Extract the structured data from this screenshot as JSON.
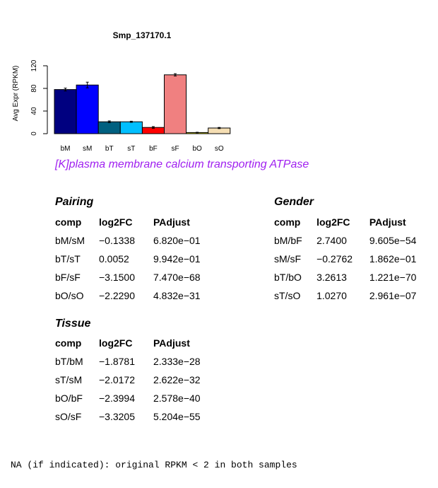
{
  "chart_data": {
    "type": "bar",
    "title": "Smp_137170.1",
    "ylabel": "Avg Expr (RPKM)",
    "xlabel": "",
    "ylim": [
      0,
      140
    ],
    "yticks": [
      0,
      40,
      80,
      120
    ],
    "categories": [
      "bM",
      "sM",
      "bT",
      "sT",
      "bF",
      "sF",
      "bO",
      "sO"
    ],
    "values": [
      78,
      86,
      21,
      21,
      11,
      104,
      2,
      10
    ],
    "errors": [
      2.5,
      5,
      1.5,
      1,
      1.5,
      2,
      0.5,
      1
    ],
    "colors": [
      "#000080",
      "#0000ff",
      "#006080",
      "#00bfff",
      "#ff0000",
      "#f08080",
      "#cccc00",
      "#f5deb3"
    ]
  },
  "subtitle": "[K]plasma membrane calcium transporting ATPase",
  "tables": {
    "pairing": {
      "title": "Pairing",
      "headers": [
        "comp",
        "log2FC",
        "PAdjust"
      ],
      "rows": [
        [
          "bM/sM",
          "−0.1338",
          "6.820e−01"
        ],
        [
          "bT/sT",
          "0.0052",
          "9.942e−01"
        ],
        [
          "bF/sF",
          "−3.1500",
          "7.470e−68"
        ],
        [
          "bO/sO",
          "−2.2290",
          "4.832e−31"
        ]
      ]
    },
    "gender": {
      "title": "Gender",
      "headers": [
        "comp",
        "log2FC",
        "PAdjust"
      ],
      "rows": [
        [
          "bM/bF",
          "2.7400",
          "9.605e−54"
        ],
        [
          "sM/sF",
          "−0.2762",
          "1.862e−01"
        ],
        [
          "bT/bO",
          "3.2613",
          "1.221e−70"
        ],
        [
          "sT/sO",
          "1.0270",
          "2.961e−07"
        ]
      ]
    },
    "tissue": {
      "title": "Tissue",
      "headers": [
        "comp",
        "log2FC",
        "PAdjust"
      ],
      "rows": [
        [
          "bT/bM",
          "−1.8781",
          "2.333e−28"
        ],
        [
          "sT/sM",
          "−2.0172",
          "2.622e−32"
        ],
        [
          "bO/bF",
          "−2.3994",
          "2.578e−40"
        ],
        [
          "sO/sF",
          "−3.3205",
          "5.204e−55"
        ]
      ]
    }
  },
  "footnote": "NA (if indicated): original RPKM < 2 in both samples"
}
